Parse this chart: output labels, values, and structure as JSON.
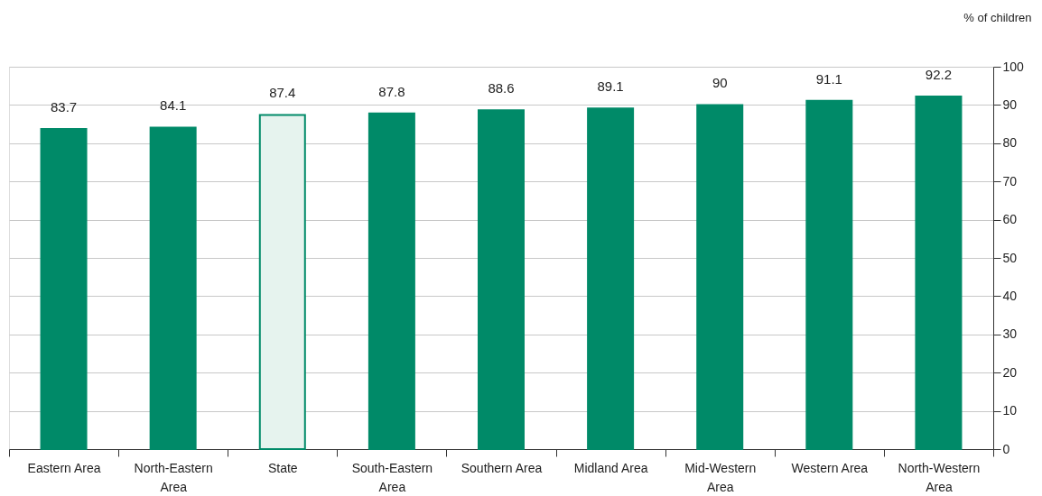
{
  "chart_data": {
    "type": "bar",
    "ylabel": "% of children",
    "categories": [
      "Eastern Area",
      "North-Eastern Area",
      "State",
      "South-Eastern Area",
      "Southern Area",
      "Midland Area",
      "Mid-Western Area",
      "Western Area",
      "North-Western Area"
    ],
    "values": [
      83.7,
      84.1,
      87.4,
      87.8,
      88.6,
      89.1,
      90,
      91.1,
      92.2
    ],
    "colors": [
      "#008a68",
      "#008a68",
      "#e6f3ee",
      "#008a68",
      "#008a68",
      "#008a68",
      "#008a68",
      "#008a68",
      "#008a68"
    ],
    "ylim": [
      0,
      100
    ],
    "yticks": [
      0,
      10,
      20,
      30,
      40,
      50,
      60,
      70,
      80,
      90,
      100
    ],
    "grid": "y",
    "data_labels": true
  }
}
